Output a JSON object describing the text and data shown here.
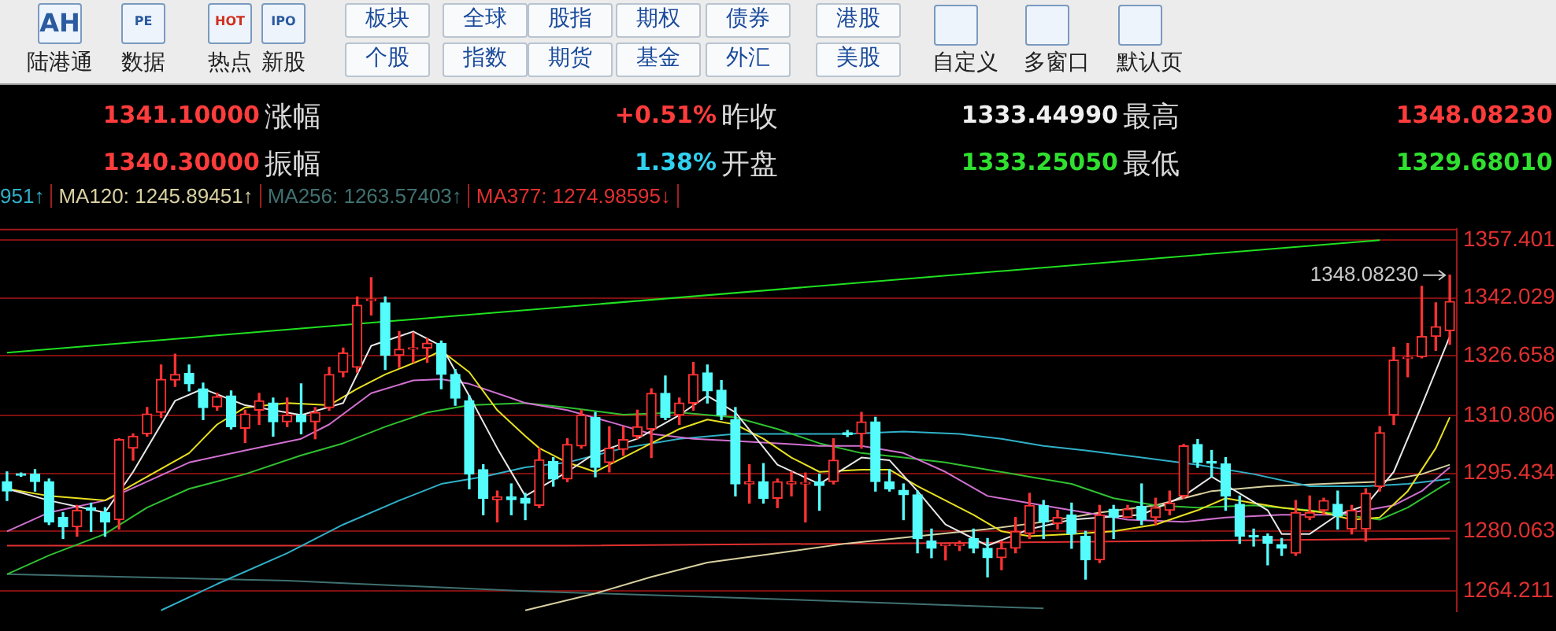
{
  "chart_data": {
    "type": "candlestick",
    "categories": [
      null,
      null,
      null,
      null,
      null,
      null,
      null,
      null,
      null,
      null,
      null,
      null,
      null,
      null,
      null,
      null,
      null,
      null,
      null,
      null,
      null,
      null,
      null,
      null,
      null,
      null,
      null,
      null,
      null,
      null,
      null,
      null,
      null,
      null,
      null,
      null,
      null,
      null,
      null,
      null,
      null,
      null,
      null,
      null,
      null,
      null,
      null,
      null,
      null,
      null,
      null,
      null,
      null,
      null,
      null,
      null,
      null,
      null,
      null,
      null,
      null,
      null,
      null,
      null,
      null,
      null,
      null,
      null,
      null,
      null,
      null,
      null,
      null,
      null,
      null,
      null,
      null,
      null,
      null,
      null,
      null,
      null,
      null,
      null,
      null,
      null,
      null,
      null,
      null,
      null,
      null,
      null,
      null,
      null,
      null,
      null,
      null,
      null,
      null,
      null,
      null,
      null,
      null,
      null
    ],
    "ohlc": [
      [
        1293.2,
        1295.8,
        1288.2,
        1290.7
      ],
      [
        1295.2,
        1295.5,
        1294.6,
        1294.9
      ],
      [
        1295.2,
        1296.4,
        1290.7,
        1293.2
      ],
      [
        1293.2,
        1293.9,
        1281.8,
        1282.5
      ],
      [
        1283.7,
        1285.0,
        1278.1,
        1281.2
      ],
      [
        1281.2,
        1286.9,
        1278.7,
        1285.6
      ],
      [
        1286.3,
        1287.5,
        1280.0,
        1285.6
      ],
      [
        1285.0,
        1286.3,
        1278.7,
        1282.5
      ],
      [
        1283.1,
        1304.6,
        1280.6,
        1304.4
      ],
      [
        1302.1,
        1305.9,
        1298.9,
        1305.3
      ],
      [
        1305.9,
        1312.9,
        1305.3,
        1311.2
      ],
      [
        1311.6,
        1324.2,
        1310.3,
        1320.4
      ],
      [
        1320.2,
        1327.1,
        1318.5,
        1321.7
      ],
      [
        1322.0,
        1324.2,
        1317.3,
        1319.2
      ],
      [
        1317.9,
        1319.4,
        1309.7,
        1312.9
      ],
      [
        1313.1,
        1316.7,
        1312.2,
        1315.8
      ],
      [
        1316.0,
        1317.3,
        1307.2,
        1307.8
      ],
      [
        1307.4,
        1312.2,
        1303.6,
        1311.2
      ],
      [
        1312.2,
        1316.7,
        1308.4,
        1314.7
      ],
      [
        1314.1,
        1315.4,
        1305.3,
        1309.1
      ],
      [
        1309.1,
        1315.4,
        1307.8,
        1310.9
      ],
      [
        1310.9,
        1319.2,
        1305.9,
        1309.1
      ],
      [
        1309.1,
        1312.9,
        1304.6,
        1311.6
      ],
      [
        1312.9,
        1323.6,
        1312.2,
        1321.7
      ],
      [
        1322.3,
        1328.7,
        1321.1,
        1327.4
      ],
      [
        1323.6,
        1342.3,
        1322.3,
        1340.1
      ],
      [
        1341.3,
        1347.4,
        1337.5,
        1341.5
      ],
      [
        1340.7,
        1342.3,
        1323.0,
        1326.8
      ],
      [
        1326.8,
        1333.1,
        1323.6,
        1328.4
      ],
      [
        1328.4,
        1332.7,
        1324.9,
        1328.6
      ],
      [
        1328.7,
        1331.2,
        1324.9,
        1330.0
      ],
      [
        1329.9,
        1330.6,
        1317.9,
        1321.7
      ],
      [
        1321.7,
        1323.0,
        1313.5,
        1315.4
      ],
      [
        1314.7,
        1316.0,
        1291.3,
        1295.2
      ],
      [
        1296.4,
        1297.7,
        1284.4,
        1288.8
      ],
      [
        1288.4,
        1290.7,
        1282.5,
        1289.2
      ],
      [
        1289.2,
        1292.6,
        1284.4,
        1288.4
      ],
      [
        1288.8,
        1290.1,
        1283.1,
        1287.5
      ],
      [
        1286.9,
        1302.1,
        1286.3,
        1299.0
      ],
      [
        1298.6,
        1299.6,
        1292.0,
        1293.9
      ],
      [
        1293.9,
        1304.6,
        1293.2,
        1303.1
      ],
      [
        1302.7,
        1312.2,
        1302.1,
        1310.9
      ],
      [
        1310.3,
        1311.6,
        1294.5,
        1297.0
      ],
      [
        1298.3,
        1307.8,
        1295.8,
        1302.1
      ],
      [
        1301.8,
        1307.8,
        1300.2,
        1304.4
      ],
      [
        1305.3,
        1312.2,
        1304.6,
        1307.8
      ],
      [
        1307.2,
        1317.9,
        1299.6,
        1316.7
      ],
      [
        1316.7,
        1321.3,
        1309.7,
        1310.3
      ],
      [
        1310.9,
        1315.4,
        1308.4,
        1314.1
      ],
      [
        1314.1,
        1324.9,
        1312.2,
        1321.7
      ],
      [
        1322.1,
        1324.2,
        1314.1,
        1317.3
      ],
      [
        1317.5,
        1320.1,
        1309.7,
        1310.9
      ],
      [
        1309.7,
        1312.9,
        1289.4,
        1292.6
      ],
      [
        1292.6,
        1297.7,
        1287.5,
        1293.2
      ],
      [
        1293.2,
        1298.0,
        1287.5,
        1288.8
      ],
      [
        1288.8,
        1293.9,
        1286.3,
        1293.2
      ],
      [
        1292.6,
        1295.8,
        1289.4,
        1293.2
      ],
      [
        1292.6,
        1295.5,
        1282.5,
        1293.0
      ],
      [
        1293.2,
        1295.2,
        1285.6,
        1292.2
      ],
      [
        1293.2,
        1304.6,
        1292.6,
        1298.9
      ],
      [
        1306.2,
        1306.8,
        1305.2,
        1305.7
      ],
      [
        1305.9,
        1311.6,
        1302.1,
        1309.1
      ],
      [
        1309.1,
        1310.3,
        1290.7,
        1293.2
      ],
      [
        1293.2,
        1296.4,
        1290.7,
        1291.3
      ],
      [
        1290.9,
        1292.6,
        1283.1,
        1289.7
      ],
      [
        1289.7,
        1290.7,
        1274.3,
        1278.1
      ],
      [
        1277.4,
        1280.6,
        1273.0,
        1275.5
      ],
      [
        1276.2,
        1276.7,
        1272.4,
        1276.4
      ],
      [
        1276.2,
        1277.4,
        1274.9,
        1276.4
      ],
      [
        1278.1,
        1280.6,
        1274.3,
        1275.5
      ],
      [
        1275.5,
        1278.1,
        1267.9,
        1273.0
      ],
      [
        1273.0,
        1277.4,
        1269.8,
        1275.5
      ],
      [
        1275.5,
        1283.7,
        1274.3,
        1280.0
      ],
      [
        1279.4,
        1290.1,
        1278.1,
        1286.9
      ],
      [
        1286.9,
        1288.2,
        1278.1,
        1282.5
      ],
      [
        1282.1,
        1285.6,
        1280.6,
        1283.7
      ],
      [
        1284.4,
        1287.5,
        1275.5,
        1279.3
      ],
      [
        1278.7,
        1280.0,
        1267.3,
        1272.4
      ],
      [
        1272.4,
        1286.9,
        1271.7,
        1284.4
      ],
      [
        1285.9,
        1286.9,
        1278.1,
        1283.7
      ],
      [
        1283.7,
        1286.9,
        1283.7,
        1285.9
      ],
      [
        1286.6,
        1292.6,
        1281.8,
        1283.1
      ],
      [
        1283.7,
        1288.8,
        1281.8,
        1286.3
      ],
      [
        1285.6,
        1290.7,
        1284.4,
        1287.5
      ],
      [
        1289.4,
        1303.1,
        1288.8,
        1302.7
      ],
      [
        1303.1,
        1304.4,
        1297.0,
        1298.3
      ],
      [
        1298.5,
        1301.5,
        1294.5,
        1298.1
      ],
      [
        1297.9,
        1299.6,
        1285.6,
        1289.4
      ],
      [
        1287.2,
        1289.4,
        1276.8,
        1278.7
      ],
      [
        1278.9,
        1280.6,
        1276.1,
        1278.5
      ],
      [
        1278.7,
        1279.3,
        1271.1,
        1276.8
      ],
      [
        1276.5,
        1278.1,
        1273.6,
        1275.5
      ],
      [
        1274.2,
        1288.2,
        1273.6,
        1285.0
      ],
      [
        1283.7,
        1289.4,
        1283.1,
        1285.0
      ],
      [
        1285.6,
        1288.8,
        1284.4,
        1288.2
      ],
      [
        1287.2,
        1290.7,
        1280.6,
        1284.1
      ],
      [
        1280.6,
        1286.9,
        1279.3,
        1285.6
      ],
      [
        1280.6,
        1291.3,
        1277.4,
        1290.1
      ],
      [
        1291.9,
        1307.8,
        1290.7,
        1306.2
      ],
      [
        1310.9,
        1328.9,
        1308.4,
        1325.5
      ],
      [
        1325.9,
        1329.9,
        1321.1,
        1326.1
      ],
      [
        1326.4,
        1345.1,
        1326.1,
        1331.8
      ],
      [
        1331.8,
        1340.7,
        1328.1,
        1334.4
      ],
      [
        1333.3,
        1348.0823,
        1329.7,
        1341.1
      ]
    ],
    "series": [
      {
        "type": "line",
        "color": "#e8e8e8",
        "values": [
          1291.3,
          null,
          null,
          1288.2,
          null,
          null,
          null,
          1285.0,
          null,
          1295.8,
          null,
          null,
          1314.7,
          null,
          1317.9,
          null,
          null,
          1313.5,
          null,
          null,
          null,
          1310.9,
          null,
          null,
          1314.1,
          null,
          1329.3,
          null,
          null,
          1333.1,
          null,
          1329.3,
          null,
          1316.0,
          null,
          1302.1,
          null,
          1289.4,
          null,
          null,
          1295.8,
          null,
          1300.8,
          null,
          null,
          1304.6,
          null,
          null,
          1310.9,
          null,
          1316.0,
          null,
          1311.6,
          null,
          null,
          1297.7,
          null,
          null,
          1292.6,
          null,
          null,
          1299.6,
          null,
          1298.9,
          null,
          1290.7,
          null,
          1281.8,
          null,
          null,
          1276.2,
          null,
          null,
          1280.6,
          null,
          null,
          1283.1,
          null,
          1283.7,
          null,
          null,
          1284.4,
          null,
          null,
          1289.4,
          null,
          1294.5,
          null,
          1290.1,
          null,
          1285.6,
          1279.3,
          null,
          1279.3,
          null,
          1284.4,
          null,
          1286.9,
          null,
          1295.8,
          null,
          1313.5,
          null,
          1331.8
        ]
      },
      {
        "type": "line",
        "color": "#e8e020",
        "values": [
          1291.3,
          null,
          null,
          1289.4,
          null,
          null,
          null,
          1288.2,
          null,
          null,
          1294.5,
          null,
          null,
          1300.8,
          null,
          1308.4,
          null,
          1312.9,
          null,
          null,
          1314.1,
          null,
          null,
          1313.5,
          null,
          1317.9,
          null,
          1321.7,
          null,
          null,
          1326.2,
          1328.0,
          null,
          1322.3,
          null,
          1312.2,
          null,
          1305.3,
          1302.1,
          null,
          1298.3,
          null,
          1295.8,
          null,
          1299.6,
          null,
          1303.4,
          null,
          1307.2,
          null,
          1309.7,
          null,
          1308.4,
          null,
          1304.6,
          null,
          1299.6,
          null,
          1295.8,
          null,
          null,
          1296.4,
          null,
          1296.4,
          null,
          1292.0,
          null,
          1288.2,
          null,
          1284.4,
          null,
          1280.0,
          null,
          1278.7,
          null,
          null,
          1279.3,
          null,
          null,
          1280.0,
          null,
          null,
          1281.8,
          null,
          null,
          1285.6,
          null,
          1288.8,
          null,
          1287.5,
          null,
          1286.3,
          null,
          null,
          1285.0,
          null,
          1283.1,
          null,
          1283.7,
          null,
          1290.7,
          null,
          1302.1,
          1310.3
        ]
      },
      {
        "type": "line",
        "color": "#d070d0",
        "values": [
          1280.0,
          null,
          null,
          1285.0,
          null,
          null,
          null,
          1288.2,
          null,
          null,
          1293.2,
          null,
          null,
          1298.3,
          null,
          null,
          null,
          1301.5,
          null,
          null,
          null,
          1304.6,
          null,
          1308.4,
          null,
          null,
          1316.7,
          null,
          null,
          1320.1,
          null,
          1320.4,
          null,
          1319.2,
          null,
          null,
          1315.4,
          1314.1,
          null,
          null,
          1312.2,
          null,
          null,
          1309.1,
          null,
          null,
          1305.9,
          null,
          null,
          1304.6,
          null,
          null,
          1304.0,
          null,
          null,
          1303.4,
          null,
          null,
          1302.7,
          null,
          null,
          1302.7,
          null,
          null,
          1300.8,
          null,
          null,
          1295.8,
          null,
          null,
          1289.4,
          null,
          null,
          1287.5,
          null,
          null,
          1285.6,
          null,
          null,
          null,
          1283.1,
          null,
          null,
          null,
          1282.5,
          null,
          null,
          1283.7,
          null,
          null,
          null,
          1284.4,
          null,
          null,
          null,
          1284.4,
          null,
          1285.6,
          null,
          1286.9,
          null,
          1290.7,
          null,
          1297.0
        ]
      },
      {
        "type": "line",
        "color": "#30c030",
        "values": [
          1268.6,
          null,
          null,
          1273.6,
          null,
          null,
          null,
          1279.3,
          null,
          null,
          1286.3,
          null,
          null,
          1291.3,
          null,
          null,
          null,
          1295.2,
          null,
          null,
          null,
          1300.2,
          null,
          null,
          1303.4,
          null,
          null,
          1307.8,
          null,
          null,
          1311.6,
          null,
          null,
          1313.5,
          null,
          null,
          null,
          1314.1,
          null,
          null,
          1312.9,
          null,
          null,
          null,
          1311.0,
          null,
          null,
          null,
          1311.6,
          null,
          null,
          null,
          1310.3,
          null,
          null,
          1307.2,
          null,
          null,
          1303.4,
          null,
          null,
          1300.8,
          null,
          null,
          1299.6,
          null,
          null,
          1298.3,
          null,
          null,
          1296.4,
          null,
          null,
          1294.5,
          null,
          null,
          1292.6,
          null,
          null,
          1288.8,
          null,
          null,
          1286.9,
          null,
          null,
          1286.3,
          null,
          null,
          null,
          1286.9,
          null,
          null,
          null,
          1285.6,
          null,
          null,
          null,
          null,
          1283.1,
          null,
          1286.3,
          null,
          null,
          1293.2
        ]
      },
      {
        "type": "line",
        "color": "#30b0c8",
        "values": [
          null,
          null,
          null,
          null,
          null,
          null,
          null,
          null,
          null,
          null,
          null,
          1259.0,
          null,
          null,
          null,
          1266.0,
          null,
          null,
          null,
          null,
          1274.2,
          null,
          null,
          null,
          1281.8,
          null,
          null,
          null,
          1288.2,
          null,
          null,
          1292.6,
          null,
          null,
          1294.5,
          null,
          null,
          1297.0,
          null,
          null,
          1298.3,
          null,
          null,
          null,
          1302.1,
          null,
          null,
          null,
          1304.6,
          null,
          null,
          null,
          1305.9,
          null,
          null,
          null,
          1305.9,
          null,
          null,
          null,
          1305.9,
          null,
          null,
          null,
          1306.5,
          null,
          null,
          null,
          1305.9,
          null,
          null,
          1304.6,
          null,
          null,
          1302.7,
          null,
          null,
          1301.5,
          null,
          null,
          null,
          1299.6,
          null,
          null,
          null,
          1297.7,
          null,
          null,
          null,
          1295.2,
          null,
          null,
          null,
          1292.0,
          null,
          null,
          null,
          1292.0,
          null,
          null,
          1292.6,
          null,
          null,
          1293.9
        ]
      },
      {
        "type": "line",
        "name": "MA120: 1245.89451↑",
        "color": "#d8d0a0",
        "values": [
          null,
          null,
          null,
          null,
          null,
          null,
          null,
          null,
          null,
          null,
          null,
          null,
          null,
          null,
          null,
          null,
          null,
          null,
          null,
          null,
          null,
          null,
          null,
          null,
          null,
          null,
          null,
          null,
          null,
          null,
          null,
          null,
          null,
          null,
          null,
          null,
          null,
          1259.0,
          null,
          null,
          null,
          null,
          1263.5,
          null,
          null,
          null,
          1267.9,
          null,
          null,
          null,
          1271.7,
          null,
          null,
          null,
          null,
          1274.2,
          null,
          null,
          null,
          null,
          1276.8,
          null,
          null,
          null,
          null,
          1278.7,
          null,
          null,
          null,
          null,
          1280.6,
          null,
          null,
          null,
          1282.5,
          null,
          null,
          null,
          1285.0,
          null,
          null,
          null,
          1286.9,
          null,
          null,
          null,
          1290.7,
          null,
          null,
          null,
          1292.0,
          null,
          null,
          null,
          1292.6,
          null,
          null,
          null,
          1293.2,
          null,
          null,
          1295.2,
          null,
          1297.7
        ]
      },
      {
        "type": "line",
        "name": "MA256: 1263.57403↑",
        "color": "#407070",
        "values": [
          1268.6,
          null,
          null,
          null,
          null,
          null,
          null,
          null,
          null,
          null,
          null,
          null,
          null,
          null,
          null,
          null,
          null,
          null,
          null,
          null,
          1266.9,
          null,
          null,
          null,
          null,
          null,
          null,
          null,
          null,
          null,
          null,
          null,
          null,
          null,
          null,
          null,
          null,
          1264.1,
          null,
          null,
          null,
          null,
          null,
          null,
          null,
          null,
          null,
          null,
          null,
          null,
          null,
          null,
          null,
          null,
          null,
          1262.0,
          null,
          null,
          null,
          null,
          null,
          null,
          null,
          null,
          null,
          null,
          null,
          null,
          null,
          null,
          null,
          null,
          null,
          null,
          1259.5,
          null,
          null,
          null,
          null,
          null,
          null,
          null,
          null,
          null,
          null,
          null,
          null,
          null,
          null,
          null,
          null,
          null,
          null,
          null,
          null,
          null,
          null,
          null,
          null,
          null,
          null,
          null,
          null,
          null
        ]
      },
      {
        "type": "line",
        "name": "MA377: 1274.98595↓",
        "color": "#e03030",
        "values": [
          1276.2,
          null,
          null,
          null,
          null,
          null,
          null,
          null,
          null,
          null,
          null,
          null,
          null,
          null,
          null,
          null,
          null,
          null,
          null,
          null,
          null,
          null,
          null,
          null,
          null,
          null,
          null,
          null,
          null,
          null,
          null,
          null,
          null,
          null,
          null,
          null,
          null,
          null,
          null,
          null,
          1276.2,
          null,
          null,
          null,
          null,
          null,
          null,
          null,
          null,
          null,
          null,
          null,
          null,
          null,
          null,
          null,
          null,
          null,
          null,
          null,
          null,
          null,
          null,
          null,
          null,
          null,
          null,
          null,
          null,
          null,
          1277.0,
          null,
          null,
          null,
          null,
          null,
          null,
          null,
          null,
          null,
          null,
          null,
          null,
          null,
          null,
          null,
          null,
          null,
          null,
          null,
          null,
          null,
          null,
          null,
          null,
          null,
          null,
          null,
          null,
          null,
          null,
          null,
          null,
          1278.1
        ]
      },
      {
        "type": "line",
        "color": "#20e020",
        "values": [
          1327.5,
          null,
          null,
          null,
          null,
          null,
          null,
          null,
          null,
          null,
          null,
          null,
          null,
          null,
          null,
          null,
          null,
          null,
          null,
          null,
          null,
          null,
          null,
          null,
          null,
          null,
          null,
          null,
          null,
          null,
          null,
          null,
          null,
          null,
          null,
          null,
          null,
          null,
          null,
          null,
          null,
          null,
          null,
          null,
          null,
          null,
          null,
          null,
          null,
          null,
          null,
          null,
          null,
          null,
          null,
          null,
          null,
          null,
          null,
          null,
          null,
          null,
          null,
          null,
          null,
          null,
          null,
          null,
          null,
          null,
          null,
          null,
          null,
          null,
          null,
          null,
          null,
          null,
          null,
          null,
          null,
          null,
          null,
          null,
          null,
          null,
          null,
          null,
          null,
          null,
          null,
          null,
          null,
          null,
          null,
          null,
          null,
          null,
          1357.4,
          null,
          null,
          null,
          null,
          null
        ]
      }
    ],
    "ylim": [
      1258.7,
      1360.4
    ],
    "yticks": [
      1357.401,
      1342.029,
      1326.658,
      1310.806,
      1295.434,
      1280.063,
      1264.211
    ],
    "grid": "y",
    "marker": "none",
    "legend": "top left",
    "tick_labels": "y",
    "annotations": [
      "AH",
      "陆港通",
      "PE",
      "数据",
      "HOT",
      "热点",
      "IPO",
      "新股",
      "板块",
      "全球",
      "股指",
      "期权",
      "债券",
      "港股",
      "个股",
      "指数",
      "期货",
      "基金",
      "外汇",
      "美股",
      "自定义",
      "多窗口",
      "默认页",
      "1341.10000",
      "涨幅",
      "+0.51%",
      "昨收",
      "1333.44990",
      "最高",
      "1348.08230",
      "1340.30000",
      "振幅",
      "1.38%",
      "开盘",
      "1333.25050",
      "最低",
      "1329.68010",
      "951↑",
      "1348.08230"
    ]
  }
}
